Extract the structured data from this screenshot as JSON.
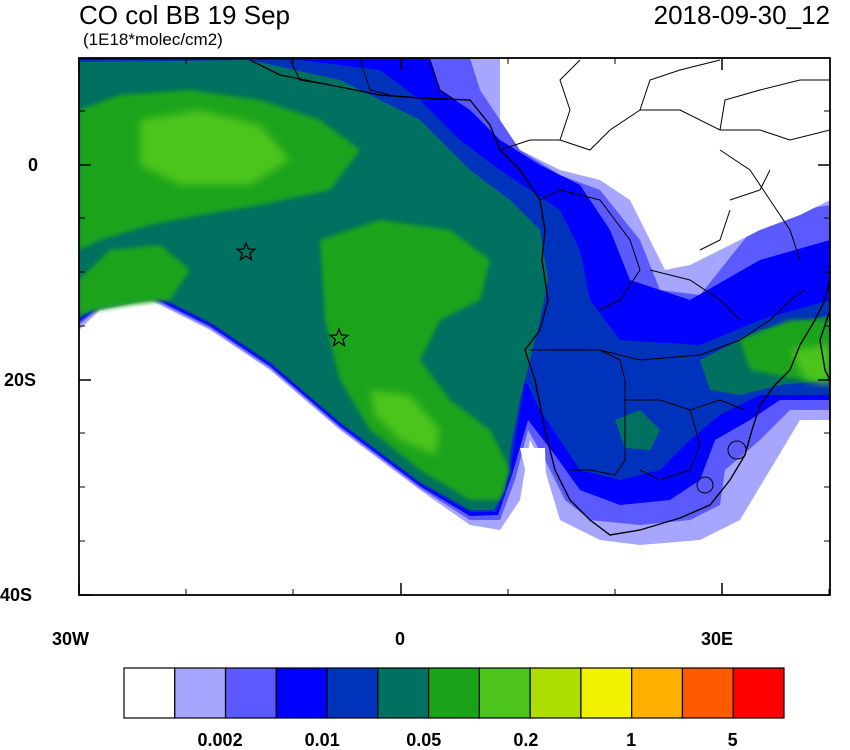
{
  "title": "CO col BB 19 Sep",
  "timestamp": "2018-09-30_12",
  "units": "(1E18*molec/cm2)",
  "axes": {
    "lon_labels": [
      "30W",
      "0",
      "30E"
    ],
    "lat_labels": [
      "0",
      "20S",
      "40S"
    ],
    "lon_range": [
      -30,
      40
    ],
    "lat_range": [
      10,
      -40
    ]
  },
  "colorbar": {
    "colors": [
      "#ffffff",
      "#a6a6ff",
      "#5a5aff",
      "#0000ff",
      "#0033bb",
      "#007060",
      "#1aa31a",
      "#4cc41a",
      "#aedd00",
      "#f2f200",
      "#ffb000",
      "#ff5a00",
      "#ff0000"
    ],
    "labels": [
      "0.002",
      "0.01",
      "0.05",
      "0.2",
      "1",
      "5"
    ]
  },
  "markers": [
    {
      "name": "star-marker-1",
      "lon": -14.5,
      "lat": -8
    },
    {
      "name": "star-marker-2",
      "lon": -5.8,
      "lat": -16
    }
  ]
}
